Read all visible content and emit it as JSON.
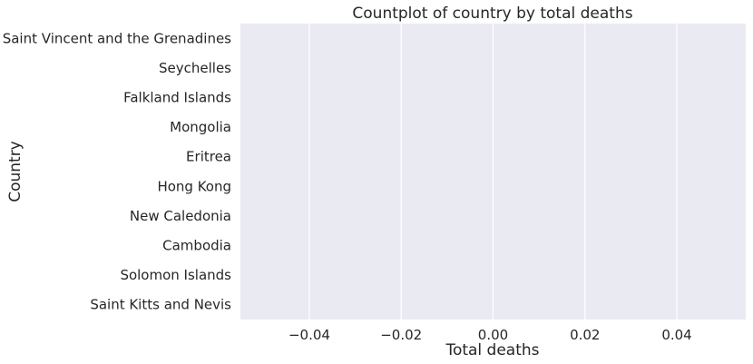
{
  "chart_data": {
    "type": "bar",
    "orientation": "horizontal",
    "title": "Countplot of country by total deaths",
    "xlabel": "Total deaths",
    "ylabel": "Country",
    "categories": [
      "Saint Vincent and the Grenadines",
      "Seychelles",
      "Falkland Islands",
      "Mongolia",
      "Eritrea",
      "Hong Kong",
      "New Caledonia",
      "Cambodia",
      "Solomon Islands",
      "Saint Kitts and Nevis"
    ],
    "values": [
      0,
      0,
      0,
      0,
      0,
      0,
      0,
      0,
      0,
      0
    ],
    "xlim": [
      -0.055,
      0.055
    ],
    "xticks": [
      -0.04,
      -0.02,
      0.0,
      0.02,
      0.04
    ],
    "xtick_labels": [
      "−0.04",
      "−0.02",
      "0.00",
      "0.02",
      "0.04"
    ],
    "grid": true,
    "colors": {
      "plot_background": "#eaeaf2",
      "grid": "#ffffff",
      "text": "#262626"
    }
  }
}
